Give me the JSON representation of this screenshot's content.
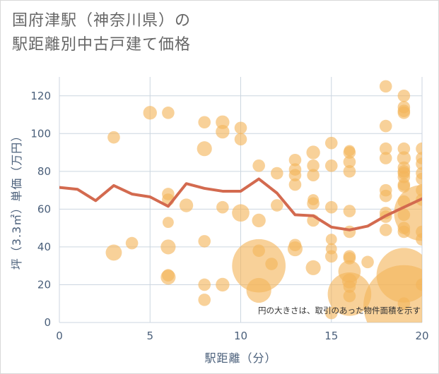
{
  "title_line1": "国府津駅（神奈川県）の",
  "title_line2": "駅距離別中古戸建て価格",
  "note": "円の大きさは、取引のあった物件面積を示す",
  "chart_data": {
    "type": "scatter",
    "xlabel": "駅距離（分）",
    "ylabel": "坪（3.3㎡）単価（万円）",
    "xlim": [
      0,
      20
    ],
    "ylim": [
      0,
      130
    ],
    "xticks": [
      0,
      5,
      10,
      15,
      20
    ],
    "yticks": [
      0,
      20,
      40,
      60,
      80,
      100,
      120
    ],
    "grid": true,
    "colors": {
      "bubble": "#f3b45a",
      "line": "#d36a4f",
      "grid": "#ccd6e0"
    },
    "scatter": [
      {
        "x": 3,
        "y": 98,
        "s": 1
      },
      {
        "x": 3,
        "y": 37,
        "s": 1.3
      },
      {
        "x": 4,
        "y": 42,
        "s": 1
      },
      {
        "x": 5,
        "y": 111,
        "s": 1.1
      },
      {
        "x": 6,
        "y": 111,
        "s": 1
      },
      {
        "x": 6,
        "y": 68,
        "s": 1
      },
      {
        "x": 6,
        "y": 65,
        "s": 1
      },
      {
        "x": 6,
        "y": 53,
        "s": 0.9
      },
      {
        "x": 6,
        "y": 40,
        "s": 1.2
      },
      {
        "x": 6,
        "y": 24,
        "s": 1.2
      },
      {
        "x": 6,
        "y": 25,
        "s": 1
      },
      {
        "x": 7,
        "y": 62,
        "s": 1.1
      },
      {
        "x": 8,
        "y": 106,
        "s": 1
      },
      {
        "x": 8,
        "y": 92,
        "s": 1.2
      },
      {
        "x": 8,
        "y": 43,
        "s": 1
      },
      {
        "x": 8,
        "y": 20,
        "s": 1
      },
      {
        "x": 8,
        "y": 12,
        "s": 1
      },
      {
        "x": 9,
        "y": 106,
        "s": 1.1
      },
      {
        "x": 9,
        "y": 101,
        "s": 1.1
      },
      {
        "x": 9,
        "y": 61,
        "s": 1
      },
      {
        "x": 9,
        "y": 20,
        "s": 1.1
      },
      {
        "x": 10,
        "y": 103,
        "s": 1
      },
      {
        "x": 10,
        "y": 97,
        "s": 1
      },
      {
        "x": 10,
        "y": 58,
        "s": 1.4
      },
      {
        "x": 11,
        "y": 83,
        "s": 1
      },
      {
        "x": 11,
        "y": 54,
        "s": 1.1
      },
      {
        "x": 11,
        "y": 38,
        "s": 1
      },
      {
        "x": 11,
        "y": 30,
        "s": 4.3
      },
      {
        "x": 11,
        "y": 17,
        "s": 2
      },
      {
        "x": 11.7,
        "y": 31,
        "s": 1
      },
      {
        "x": 12,
        "y": 79,
        "s": 1
      },
      {
        "x": 12,
        "y": 62,
        "s": 1
      },
      {
        "x": 13,
        "y": 86,
        "s": 1
      },
      {
        "x": 13,
        "y": 81,
        "s": 1
      },
      {
        "x": 13,
        "y": 78,
        "s": 1
      },
      {
        "x": 13,
        "y": 73,
        "s": 1
      },
      {
        "x": 13,
        "y": 41,
        "s": 1
      },
      {
        "x": 13,
        "y": 39,
        "s": 1.2
      },
      {
        "x": 14,
        "y": 90,
        "s": 1.1
      },
      {
        "x": 14,
        "y": 83,
        "s": 1
      },
      {
        "x": 14,
        "y": 78,
        "s": 1
      },
      {
        "x": 14,
        "y": 65,
        "s": 0.9
      },
      {
        "x": 14,
        "y": 63,
        "s": 1
      },
      {
        "x": 14,
        "y": 54,
        "s": 1
      },
      {
        "x": 14,
        "y": 29,
        "s": 1.2
      },
      {
        "x": 15,
        "y": 95,
        "s": 1
      },
      {
        "x": 15,
        "y": 83,
        "s": 1
      },
      {
        "x": 15,
        "y": 61,
        "s": 1
      },
      {
        "x": 15,
        "y": 44,
        "s": 0.9
      },
      {
        "x": 15,
        "y": 39,
        "s": 0.9
      },
      {
        "x": 15,
        "y": 35,
        "s": 1
      },
      {
        "x": 15,
        "y": 5,
        "s": 1
      },
      {
        "x": 16,
        "y": 91,
        "s": 0.9
      },
      {
        "x": 16,
        "y": 90,
        "s": 1
      },
      {
        "x": 16,
        "y": 85,
        "s": 1
      },
      {
        "x": 16,
        "y": 80,
        "s": 1
      },
      {
        "x": 16,
        "y": 59,
        "s": 1
      },
      {
        "x": 16,
        "y": 48,
        "s": 1
      },
      {
        "x": 16,
        "y": 35,
        "s": 1
      },
      {
        "x": 16,
        "y": 34,
        "s": 1
      },
      {
        "x": 16,
        "y": 27,
        "s": 1.8
      },
      {
        "x": 16,
        "y": 22,
        "s": 1.2
      },
      {
        "x": 16,
        "y": 19,
        "s": 1
      },
      {
        "x": 16,
        "y": 15,
        "s": 3.5
      },
      {
        "x": 16,
        "y": 14,
        "s": 1
      },
      {
        "x": 17,
        "y": 32,
        "s": 1
      },
      {
        "x": 18,
        "y": 125,
        "s": 1
      },
      {
        "x": 18,
        "y": 104,
        "s": 1
      },
      {
        "x": 18,
        "y": 92,
        "s": 1
      },
      {
        "x": 18,
        "y": 87,
        "s": 1
      },
      {
        "x": 18,
        "y": 70,
        "s": 1
      },
      {
        "x": 18,
        "y": 67,
        "s": 1
      },
      {
        "x": 18,
        "y": 58,
        "s": 1
      },
      {
        "x": 18,
        "y": 56,
        "s": 1
      },
      {
        "x": 18,
        "y": 49,
        "s": 1
      },
      {
        "x": 19,
        "y": 120,
        "s": 1
      },
      {
        "x": 19,
        "y": 114,
        "s": 1
      },
      {
        "x": 19,
        "y": 112,
        "s": 1
      },
      {
        "x": 19,
        "y": 111,
        "s": 1
      },
      {
        "x": 19,
        "y": 92,
        "s": 1
      },
      {
        "x": 19,
        "y": 87,
        "s": 1.1
      },
      {
        "x": 19,
        "y": 82,
        "s": 1
      },
      {
        "x": 19,
        "y": 80,
        "s": 1
      },
      {
        "x": 19,
        "y": 79,
        "s": 1
      },
      {
        "x": 19,
        "y": 77,
        "s": 1
      },
      {
        "x": 19,
        "y": 73,
        "s": 1
      },
      {
        "x": 19,
        "y": 72,
        "s": 1
      },
      {
        "x": 19,
        "y": 64,
        "s": 1
      },
      {
        "x": 19,
        "y": 57,
        "s": 1
      },
      {
        "x": 19,
        "y": 50,
        "s": 1
      },
      {
        "x": 19,
        "y": 48,
        "s": 1
      },
      {
        "x": 19,
        "y": 25,
        "s": 4.4
      },
      {
        "x": 19,
        "y": 10,
        "s": 1
      },
      {
        "x": 19,
        "y": 9,
        "s": 6.5
      },
      {
        "x": 20,
        "y": 92,
        "s": 1
      },
      {
        "x": 20,
        "y": 87,
        "s": 1
      },
      {
        "x": 20,
        "y": 84,
        "s": 1
      },
      {
        "x": 20,
        "y": 79,
        "s": 1
      },
      {
        "x": 20,
        "y": 76,
        "s": 1
      },
      {
        "x": 20,
        "y": 70,
        "s": 1
      },
      {
        "x": 20,
        "y": 65,
        "s": 1
      },
      {
        "x": 20,
        "y": 58,
        "s": 4.5
      },
      {
        "x": 20,
        "y": 48,
        "s": 1
      },
      {
        "x": 20,
        "y": 44,
        "s": 1
      },
      {
        "x": 20,
        "y": 20,
        "s": 1
      }
    ],
    "trend": {
      "x": [
        0,
        1,
        2,
        3,
        4,
        5,
        6,
        7,
        8,
        9,
        10,
        11,
        12,
        13,
        14,
        15,
        16,
        17,
        18,
        19,
        20
      ],
      "y": [
        71.5,
        70.5,
        64.5,
        72.5,
        68,
        66.5,
        61.5,
        73.5,
        71,
        69.5,
        69.5,
        76,
        68.5,
        57,
        56.5,
        50.5,
        49,
        51,
        56.5,
        61,
        65.5
      ]
    }
  }
}
